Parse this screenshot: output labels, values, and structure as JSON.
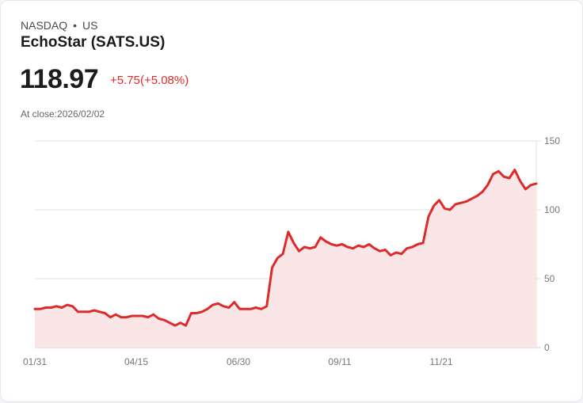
{
  "header": {
    "exchange": "NASDAQ",
    "separator": "•",
    "region": "US",
    "title": "EchoStar (SATS.US)",
    "price": "118.97",
    "change": "+5.75(+5.08%)",
    "close_label": "At close:2026/02/02"
  },
  "colors": {
    "line": "#dd2a2a",
    "fill": "#fbe6e7",
    "grid": "#e2e2e2",
    "change": "#e02a2a"
  },
  "chart_data": {
    "type": "area",
    "title": "EchoStar (SATS.US)",
    "xlabel": "",
    "ylabel": "",
    "ylim": [
      0,
      150
    ],
    "yticks": [
      0,
      50,
      100,
      150
    ],
    "xticks": [
      "01/31",
      "04/15",
      "06/30",
      "09/11",
      "11/21"
    ],
    "grid": true,
    "y_axis_position": "right",
    "series": [
      {
        "name": "SATS.US close",
        "x_index_range": [
          0,
          100
        ],
        "values": [
          28,
          28,
          29,
          29,
          30,
          29,
          31,
          30,
          26,
          26,
          26,
          27,
          26,
          25,
          22,
          24,
          22,
          22,
          23,
          23,
          23,
          22,
          24,
          21,
          20,
          18,
          16,
          18,
          16,
          25,
          25,
          26,
          28,
          31,
          32,
          30,
          29,
          33,
          28,
          28,
          28,
          29,
          28,
          30,
          58,
          65,
          68,
          84,
          76,
          70,
          73,
          72,
          73,
          80,
          77,
          75,
          74,
          75,
          73,
          72,
          74,
          73,
          75,
          72,
          70,
          71,
          67,
          69,
          68,
          72,
          73,
          75,
          76,
          95,
          103,
          107,
          101,
          100,
          104,
          105,
          106,
          108,
          110,
          113,
          118,
          126,
          128,
          124,
          123,
          129,
          121,
          115,
          118,
          119
        ]
      }
    ]
  }
}
